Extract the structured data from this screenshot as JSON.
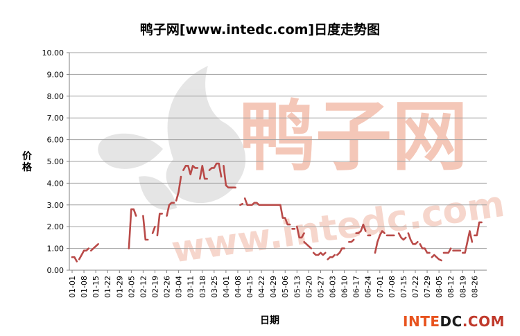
{
  "chart_data": {
    "type": "line",
    "title": "鸭子网[www.intedc.com]日度走势图",
    "xlabel": "日期",
    "ylabel": "价格",
    "ylim": [
      0,
      10
    ],
    "yticks": [
      "0.00",
      "1.00",
      "2.00",
      "3.00",
      "4.00",
      "5.00",
      "6.00",
      "7.00",
      "8.00",
      "9.00",
      "10.00"
    ],
    "xticks": [
      "01-01",
      "01-08",
      "01-15",
      "01-22",
      "01-29",
      "02-05",
      "02-12",
      "02-19",
      "02-26",
      "03-04",
      "03-11",
      "03-18",
      "03-25",
      "04-01",
      "04-08",
      "04-15",
      "04-22",
      "04-29",
      "05-06",
      "05-13",
      "05-20",
      "05-27",
      "06-03",
      "06-10",
      "06-17",
      "06-24",
      "07-01",
      "07-08",
      "07-15",
      "07-22",
      "07-29",
      "08-05",
      "08-12",
      "08-19",
      "08-26"
    ],
    "grid": true,
    "line_color": "#b94a48",
    "segments": [
      [
        [
          0,
          0.6
        ],
        [
          1,
          0.6
        ],
        [
          2,
          0.4
        ]
      ],
      [
        [
          3,
          0.5
        ],
        [
          4,
          0.7
        ],
        [
          5,
          0.9
        ],
        [
          6,
          0.9
        ],
        [
          7,
          1.0
        ]
      ],
      [
        [
          8,
          0.9
        ],
        [
          9,
          1.0
        ],
        [
          10,
          1.1
        ],
        [
          11,
          1.2
        ]
      ],
      [
        [
          24,
          1.0
        ],
        [
          25,
          2.8
        ],
        [
          26,
          2.8
        ],
        [
          27,
          2.5
        ]
      ],
      [
        [
          30,
          2.5
        ],
        [
          31,
          1.4
        ],
        [
          32,
          1.4
        ]
      ],
      [
        [
          34,
          1.7
        ],
        [
          35,
          2.0
        ]
      ],
      [
        [
          36,
          1.6
        ],
        [
          37,
          2.6
        ],
        [
          38,
          2.6
        ]
      ],
      [
        [
          40,
          2.5
        ],
        [
          41,
          3.0
        ],
        [
          42,
          3.1
        ],
        [
          43,
          3.1
        ]
      ],
      [
        [
          44,
          3.2
        ],
        [
          45,
          3.6
        ],
        [
          46,
          4.3
        ]
      ],
      [
        [
          47,
          4.6
        ],
        [
          48,
          4.8
        ],
        [
          49,
          4.8
        ],
        [
          50,
          4.4
        ],
        [
          51,
          4.8
        ],
        [
          52,
          4.7
        ],
        [
          53,
          4.7
        ]
      ],
      [
        [
          54,
          4.2
        ],
        [
          55,
          4.8
        ],
        [
          56,
          4.2
        ],
        [
          57,
          4.2
        ]
      ],
      [
        [
          58,
          4.6
        ],
        [
          59,
          4.7
        ],
        [
          60,
          4.7
        ],
        [
          61,
          4.9
        ],
        [
          62,
          4.9
        ],
        [
          63,
          4.3
        ]
      ],
      [
        [
          64,
          4.8
        ],
        [
          65,
          3.9
        ],
        [
          66,
          3.8
        ],
        [
          67,
          3.8
        ],
        [
          68,
          3.8
        ],
        [
          69,
          3.8
        ]
      ],
      [
        [
          71,
          3.0
        ],
        [
          72,
          3.05
        ]
      ],
      [
        [
          73,
          3.3
        ],
        [
          74,
          3.0
        ],
        [
          75,
          3.0
        ],
        [
          76,
          3.0
        ],
        [
          77,
          3.1
        ],
        [
          78,
          3.1
        ],
        [
          79,
          3.0
        ],
        [
          80,
          3.0
        ],
        [
          81,
          3.0
        ],
        [
          82,
          3.0
        ],
        [
          83,
          3.0
        ],
        [
          84,
          3.0
        ],
        [
          85,
          3.0
        ],
        [
          86,
          3.0
        ],
        [
          87,
          3.0
        ],
        [
          88,
          3.0
        ],
        [
          89,
          2.4
        ],
        [
          90,
          2.4
        ],
        [
          91,
          2.1
        ],
        [
          92,
          2.1
        ]
      ],
      [
        [
          93,
          1.9
        ],
        [
          94,
          1.9
        ]
      ],
      [
        [
          95,
          2.0
        ],
        [
          96,
          1.5
        ],
        [
          97,
          1.5
        ],
        [
          98,
          1.7
        ]
      ],
      [
        [
          98,
          1.3
        ],
        [
          99,
          1.2
        ],
        [
          100,
          1.1
        ],
        [
          101,
          1.0
        ]
      ],
      [
        [
          102,
          0.8
        ],
        [
          103,
          0.7
        ],
        [
          104,
          0.7
        ],
        [
          105,
          0.8
        ],
        [
          106,
          0.7
        ],
        [
          107,
          0.8
        ]
      ],
      [
        [
          108,
          0.5
        ],
        [
          109,
          0.6
        ],
        [
          110,
          0.6
        ],
        [
          111,
          0.7
        ]
      ],
      [
        [
          112,
          0.7
        ],
        [
          113,
          0.8
        ],
        [
          114,
          1.0
        ],
        [
          115,
          1.0
        ]
      ],
      [
        [
          117,
          1.3
        ],
        [
          118,
          1.3
        ],
        [
          119,
          1.4
        ]
      ],
      [
        [
          120,
          1.7
        ],
        [
          121,
          1.7
        ],
        [
          122,
          1.8
        ],
        [
          123,
          2.1
        ],
        [
          124,
          1.8
        ]
      ],
      [
        [
          125,
          1.6
        ],
        [
          126,
          1.6
        ]
      ],
      [
        [
          128,
          0.8
        ],
        [
          129,
          1.3
        ],
        [
          130,
          1.6
        ],
        [
          131,
          1.8
        ],
        [
          132,
          1.7
        ]
      ],
      [
        [
          133,
          1.6
        ],
        [
          134,
          1.6
        ],
        [
          135,
          1.6
        ],
        [
          136,
          1.6
        ]
      ],
      [
        [
          138,
          1.7
        ],
        [
          139,
          1.5
        ],
        [
          140,
          1.4
        ],
        [
          141,
          1.5
        ]
      ],
      [
        [
          142,
          1.7
        ],
        [
          143,
          1.4
        ],
        [
          144,
          1.2
        ],
        [
          145,
          1.2
        ],
        [
          146,
          1.3
        ]
      ],
      [
        [
          147,
          1.2
        ],
        [
          148,
          1.0
        ],
        [
          149,
          1.0
        ],
        [
          150,
          0.8
        ],
        [
          151,
          0.8
        ]
      ],
      [
        [
          152,
          0.6
        ],
        [
          153,
          0.7
        ],
        [
          154,
          0.6
        ],
        [
          155,
          0.5
        ],
        [
          156,
          0.45
        ]
      ],
      [
        [
          157,
          0.8
        ],
        [
          158,
          0.8
        ],
        [
          159,
          0.8
        ],
        [
          160,
          1.0
        ]
      ],
      [
        [
          161,
          0.9
        ],
        [
          162,
          0.9
        ],
        [
          163,
          0.9
        ],
        [
          164,
          0.9
        ]
      ],
      [
        [
          165,
          0.8
        ],
        [
          166,
          0.8
        ],
        [
          167,
          1.3
        ],
        [
          168,
          1.8
        ],
        [
          169,
          1.3
        ]
      ],
      [
        [
          170,
          1.6
        ],
        [
          171,
          1.6
        ],
        [
          172,
          2.2
        ],
        [
          173,
          2.2
        ]
      ]
    ]
  },
  "watermark": {
    "center_text": "鸭子网",
    "url_text": "www.intedc.com"
  },
  "brand": {
    "part1": "INTE",
    "part2": "DC",
    "part3": ".COM"
  }
}
